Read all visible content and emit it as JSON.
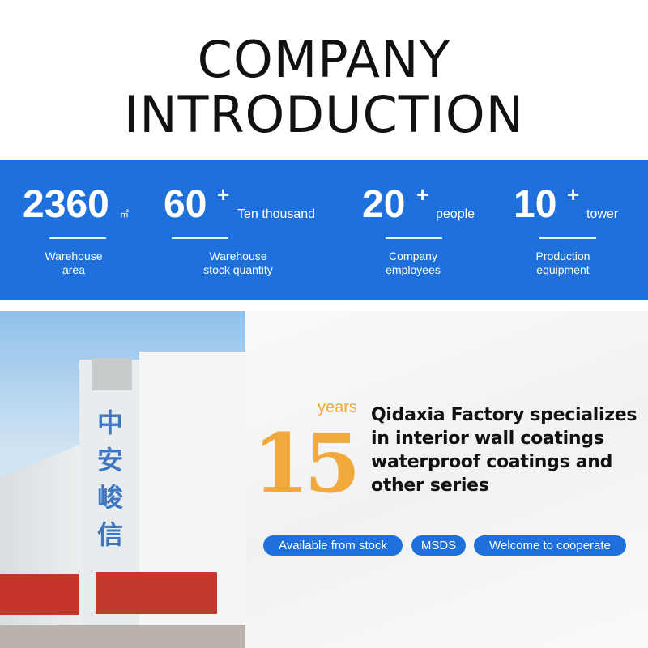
{
  "title": {
    "line1": "COMPANY",
    "line2": "INTRODUCTION"
  },
  "stats": [
    {
      "value": "2360",
      "unit": "㎡",
      "plus": "",
      "label1": "Warehouse",
      "label2": "area"
    },
    {
      "value": "60",
      "unit": "Ten thousand",
      "plus": "+",
      "label1": "Warehouse",
      "label2": "stock quantity"
    },
    {
      "value": "20",
      "unit": "people",
      "plus": "+",
      "label1": "Company",
      "label2": "employees"
    },
    {
      "value": "10",
      "unit": "tower",
      "plus": "+",
      "label1": "Production",
      "label2": "equipment"
    }
  ],
  "photo": {
    "sign": [
      "中",
      "安",
      "峻",
      "信"
    ]
  },
  "intro": {
    "years_label": "years",
    "years_value": "15",
    "description": "Qidaxia Factory specializes in interior wall coatings waterproof coatings and other series"
  },
  "tags": [
    "Available from stock",
    "MSDS",
    "Welcome to cooperate"
  ],
  "colors": {
    "accent_blue": "#1e70dc",
    "orange": "#f0a93a"
  }
}
